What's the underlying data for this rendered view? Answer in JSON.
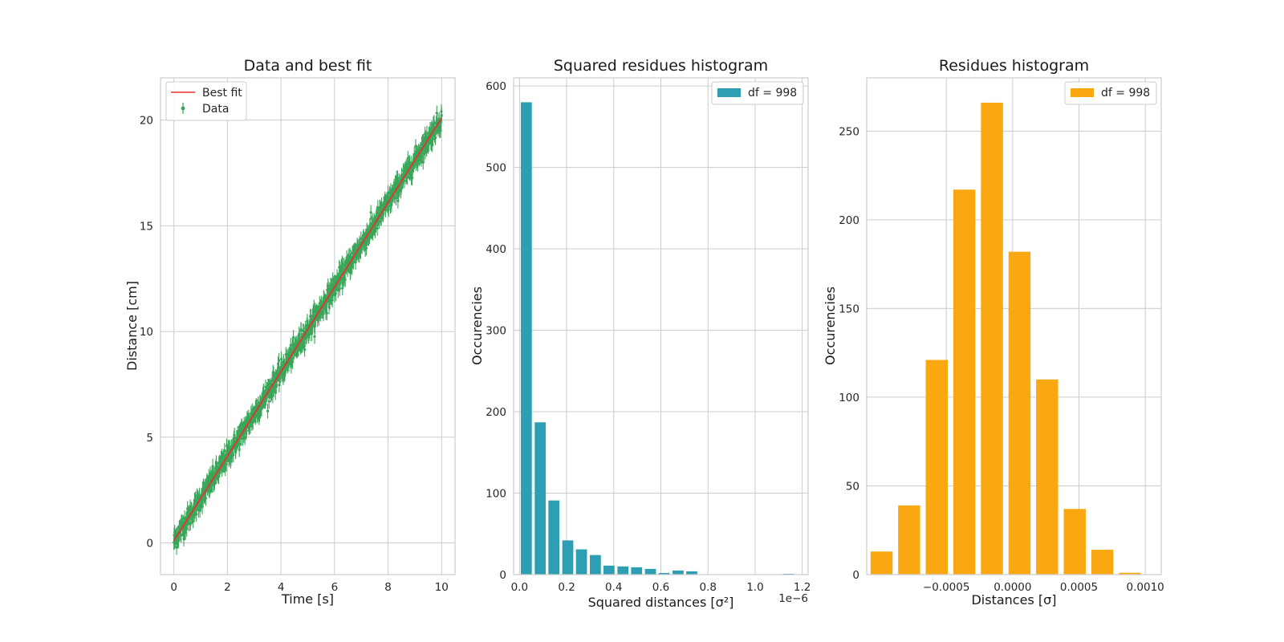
{
  "chart_data": [
    {
      "type": "scatter",
      "title": "Data and best fit",
      "xlabel": "Time [s]",
      "ylabel": "Distance [cm]",
      "xlim": [
        -0.5,
        10.5
      ],
      "ylim": [
        -1.5,
        22.0
      ],
      "xticks": [
        0,
        2,
        4,
        6,
        8,
        10
      ],
      "yticks": [
        0,
        5,
        10,
        15,
        20
      ],
      "xtick_labels": [
        "0",
        "2",
        "4",
        "6",
        "8",
        "10"
      ],
      "ytick_labels": [
        "0",
        "5",
        "10",
        "15",
        "20"
      ],
      "grid": true,
      "legend_position": "top-left",
      "series": [
        {
          "name": "Best fit",
          "kind": "line",
          "color": "#e8312f",
          "slope": 2.0,
          "intercept": 0.1,
          "x_range": [
            0,
            10
          ]
        },
        {
          "name": "Data",
          "kind": "errorbar",
          "color": "#3aa65a",
          "n_points": 1000,
          "x_range": [
            0,
            10
          ],
          "noise_sd": 0.25,
          "errorbar_halfwidth": 0.35
        }
      ]
    },
    {
      "type": "bar",
      "title": "Squared residues histogram",
      "xlabel": "Squared distances [σ²]",
      "ylabel": "Occurencies",
      "x_offset_label": "1e−6",
      "xlim": [
        -0.025,
        1.225
      ],
      "ylim": [
        0,
        610
      ],
      "xticks": [
        0.0,
        0.2,
        0.4,
        0.6,
        0.8,
        1.0,
        1.2
      ],
      "yticks": [
        0,
        100,
        200,
        300,
        400,
        500,
        600
      ],
      "xtick_labels": [
        "0.0",
        "0.2",
        "0.4",
        "0.6",
        "0.8",
        "1.0",
        "1.2"
      ],
      "ytick_labels": [
        "0",
        "100",
        "200",
        "300",
        "400",
        "500",
        "600"
      ],
      "grid": true,
      "legend_position": "top-right",
      "series": [
        {
          "name": "df = 998",
          "color": "#2e9eb3",
          "bin_width": 0.0585,
          "bar_width": 0.0468,
          "bin_centers": [
            0.029,
            0.088,
            0.146,
            0.205,
            0.263,
            0.322,
            0.38,
            0.439,
            0.497,
            0.556,
            0.614,
            0.673,
            0.731,
            0.79,
            0.848,
            0.907,
            0.965,
            1.024,
            1.082,
            1.141
          ],
          "values": [
            580,
            187,
            91,
            42,
            31,
            24,
            11,
            10,
            9,
            7,
            2,
            5,
            4,
            0,
            0,
            0,
            0,
            0,
            0,
            1
          ]
        }
      ]
    },
    {
      "type": "bar",
      "title": "Residues histogram",
      "xlabel": "Distances [σ]",
      "ylabel": "Occurencies",
      "xlim": [
        -0.0011,
        0.00112
      ],
      "ylim": [
        0,
        280
      ],
      "xticks": [
        -0.0005,
        0.0,
        0.0005,
        0.001
      ],
      "yticks": [
        0,
        50,
        100,
        150,
        200,
        250
      ],
      "xtick_labels": [
        "−0.0005",
        "0.0000",
        "0.0005",
        "0.0010"
      ],
      "ytick_labels": [
        "0",
        "50",
        "100",
        "150",
        "200",
        "250"
      ],
      "grid": true,
      "legend_position": "top-right",
      "series": [
        {
          "name": "df = 998",
          "color": "#f9a812",
          "bin_width": 0.000208,
          "bar_width": 0.000166,
          "bin_centers": [
            -0.000988,
            -0.00078,
            -0.000572,
            -0.000364,
            -0.000156,
            5.2e-05,
            0.00026,
            0.000468,
            0.000676,
            0.000884,
            0.001092
          ],
          "values": [
            13,
            39,
            121,
            217,
            266,
            182,
            110,
            37,
            14,
            1,
            0
          ]
        }
      ]
    }
  ]
}
